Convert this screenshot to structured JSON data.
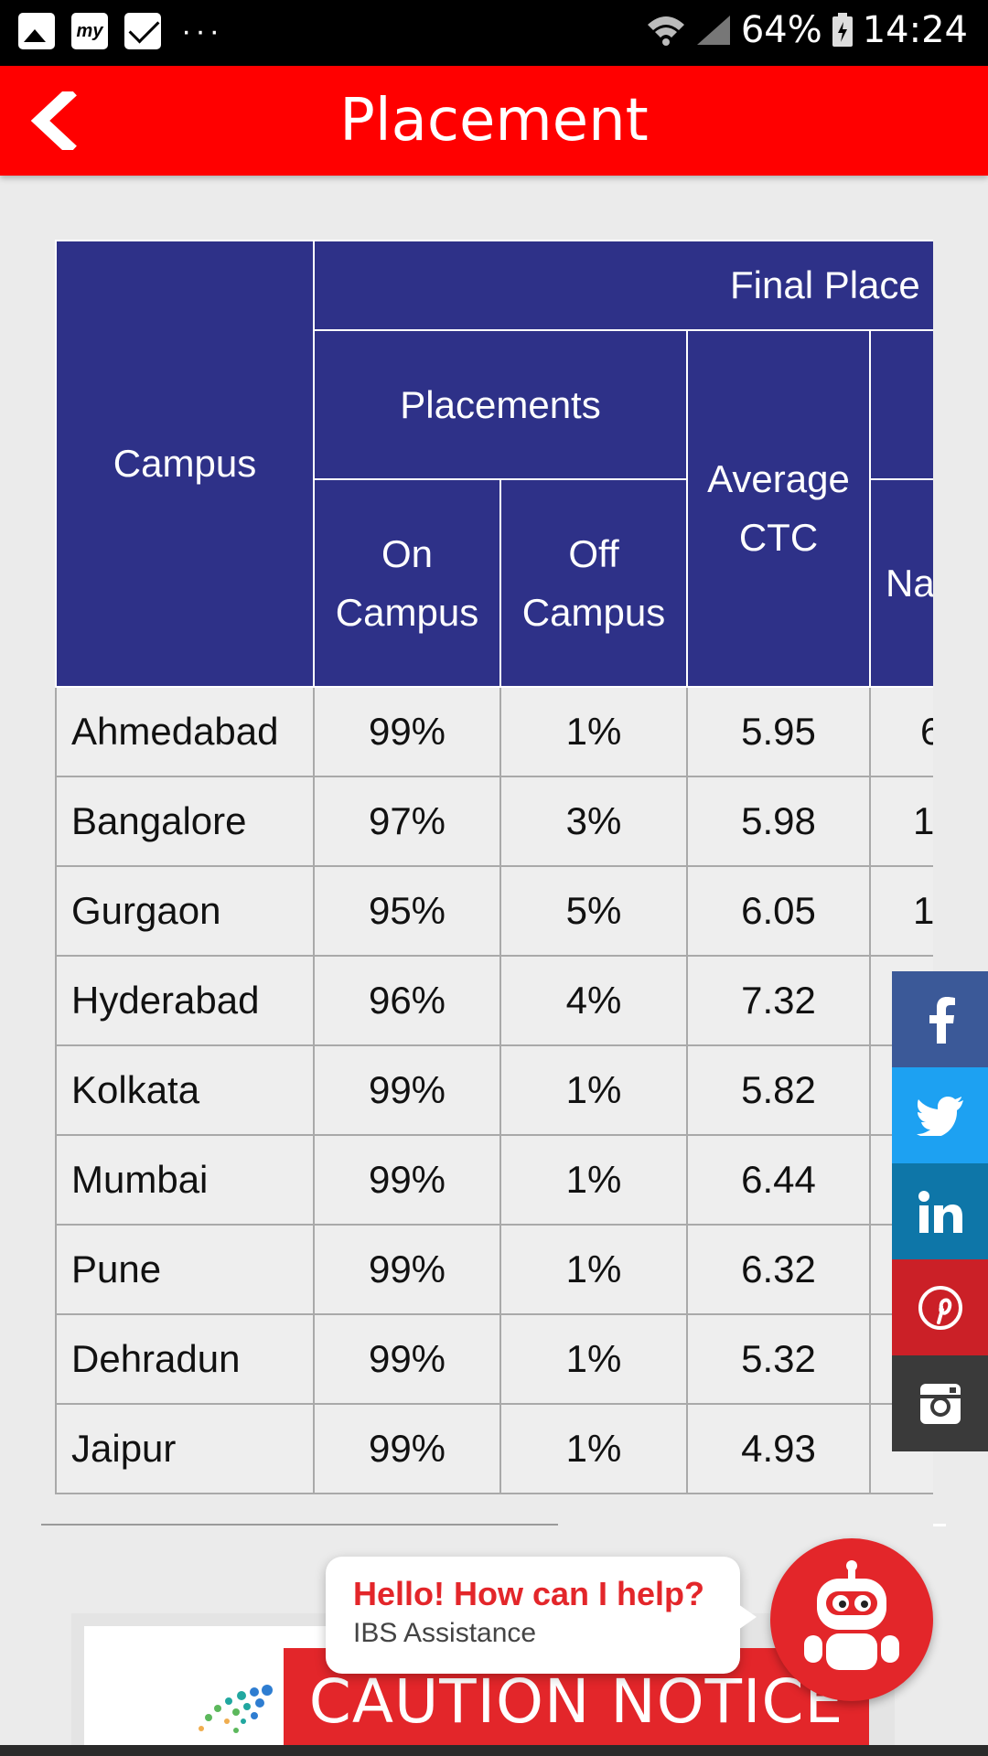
{
  "status_bar": {
    "battery": "64%",
    "time": "14:24",
    "more": "···",
    "notif_my": "my"
  },
  "header": {
    "title": "Placement"
  },
  "table": {
    "headers": {
      "campus": "Campus",
      "final_placements": "Final Place",
      "placements": "Placements",
      "on_campus": "On Campus",
      "off_campus": "Off Campus",
      "average_ctc": "Average CTC",
      "na": "Na"
    },
    "rows": [
      {
        "campus": "Ahmedabad",
        "on": "99%",
        "off": "1%",
        "ctc": "5.95",
        "next": "6"
      },
      {
        "campus": "Bangalore",
        "on": "97%",
        "off": "3%",
        "ctc": "5.98",
        "next": "1"
      },
      {
        "campus": "Gurgaon",
        "on": "95%",
        "off": "5%",
        "ctc": "6.05",
        "next": "1"
      },
      {
        "campus": "Hyderabad",
        "on": "96%",
        "off": "4%",
        "ctc": "7.32",
        "next": ""
      },
      {
        "campus": "Kolkata",
        "on": "99%",
        "off": "1%",
        "ctc": "5.82",
        "next": ""
      },
      {
        "campus": "Mumbai",
        "on": "99%",
        "off": "1%",
        "ctc": "6.44",
        "next": ""
      },
      {
        "campus": "Pune",
        "on": "99%",
        "off": "1%",
        "ctc": "6.32",
        "next": ""
      },
      {
        "campus": "Dehradun",
        "on": "99%",
        "off": "1%",
        "ctc": "5.32",
        "next": ""
      },
      {
        "campus": "Jaipur",
        "on": "99%",
        "off": "1%",
        "ctc": "4.93",
        "next": ""
      }
    ]
  },
  "social": [
    "facebook-icon",
    "twitter-icon",
    "linkedin-icon",
    "pinterest-icon",
    "instagram-icon"
  ],
  "chat": {
    "title": "Hello! How can I help?",
    "subtitle": "IBS Assistance"
  },
  "banner": {
    "text": "CAUTION NOTICE"
  },
  "colors": {
    "accent": "#ff0000",
    "table_header": "#2e3188",
    "banner": "#e3262a"
  }
}
